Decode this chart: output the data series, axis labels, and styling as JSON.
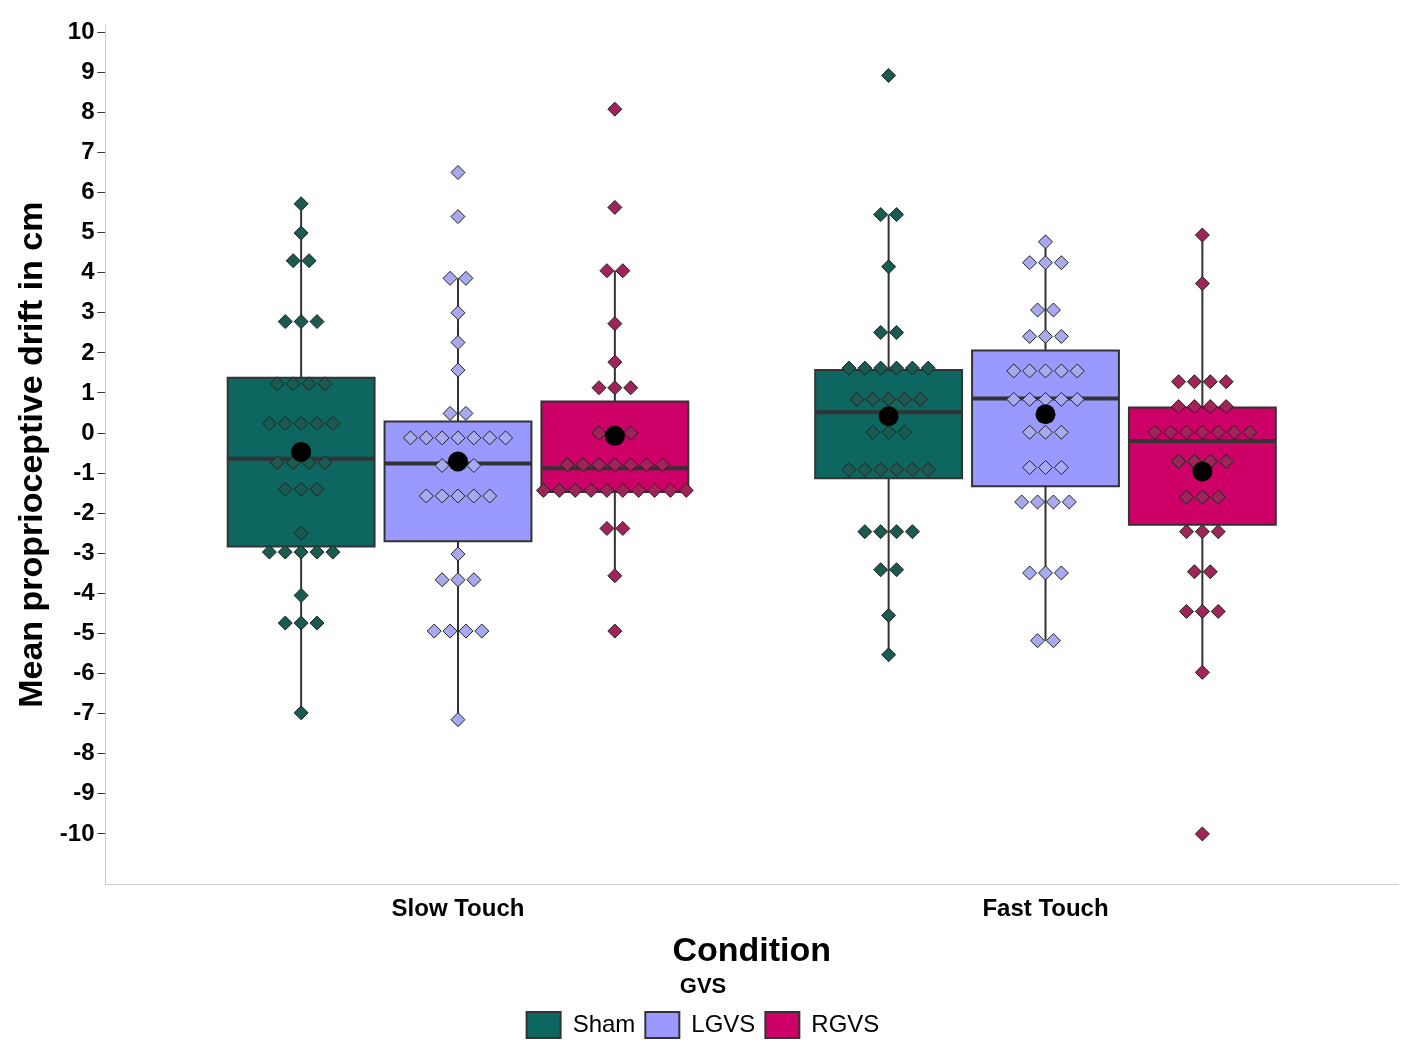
{
  "chart_data": {
    "type": "box",
    "xlabel": "Condition",
    "ylabel": "Mean proprioceptive drift in cm",
    "legend_title": "GVS",
    "legend": "bottom",
    "grid": false,
    "marker": "diamond",
    "categories": [
      "Slow Touch",
      "Fast Touch"
    ],
    "ylim": [
      -11.25,
      10.17
    ],
    "yticks": [
      -10,
      -9,
      -8,
      -7,
      -6,
      -5,
      -4,
      -3,
      -2,
      -1,
      0,
      1,
      2,
      3,
      4,
      5,
      6,
      7,
      8,
      9,
      10
    ],
    "series": [
      {
        "name": "Sham",
        "color": "#0e6660",
        "boxes": [
          {
            "low": -6.98,
            "q1": -2.83,
            "median": -0.64,
            "q3": 1.38,
            "high": 5.72,
            "mean": -0.47
          },
          {
            "low": -5.53,
            "q1": -1.13,
            "median": 0.52,
            "q3": 1.57,
            "high": 5.45,
            "mean": 0.42
          }
        ]
      },
      {
        "name": "LGVS",
        "color": "#9999ff",
        "boxes": [
          {
            "low": -7.15,
            "q1": -2.7,
            "median": -0.76,
            "q3": 0.29,
            "high": 3.86,
            "mean": -0.71
          },
          {
            "low": -5.18,
            "q1": -1.33,
            "median": 0.86,
            "q3": 2.06,
            "high": 4.77,
            "mean": 0.47
          }
        ]
      },
      {
        "name": "RGVS",
        "color": "#cc0066",
        "boxes": [
          {
            "low": -3.56,
            "q1": -1.47,
            "median": -0.88,
            "q3": 0.79,
            "high": 4.05,
            "mean": -0.07
          },
          {
            "low": -5.97,
            "q1": -2.29,
            "median": -0.2,
            "q3": 0.64,
            "high": 4.94,
            "mean": -0.96
          }
        ]
      },
      {
        "type": "scatter",
        "color": "#1b5a50",
        "x": [
          "Slow Touch",
          "Slow Touch",
          "Slow Touch",
          "Slow Touch",
          "Slow Touch",
          "Slow Touch",
          "Slow Touch",
          "Slow Touch",
          "Slow Touch",
          "Slow Touch",
          "Slow Touch",
          "Slow Touch",
          "Slow Touch",
          "Slow Touch",
          "Slow Touch",
          "Slow Touch",
          "Slow Touch",
          "Slow Touch",
          "Slow Touch",
          "Slow Touch",
          "Slow Touch",
          "Slow Touch",
          "Slow Touch",
          "Slow Touch",
          "Slow Touch",
          "Slow Touch",
          "Slow Touch",
          "Slow Touch",
          "Slow Touch",
          "Slow Touch",
          "Slow Touch",
          "Slow Touch",
          "Slow Touch",
          "Slow Touch",
          "Fast Touch",
          "Fast Touch",
          "Fast Touch",
          "Fast Touch",
          "Fast Touch",
          "Fast Touch",
          "Fast Touch",
          "Fast Touch",
          "Fast Touch",
          "Fast Touch",
          "Fast Touch",
          "Fast Touch",
          "Fast Touch",
          "Fast Touch",
          "Fast Touch",
          "Fast Touch",
          "Fast Touch",
          "Fast Touch",
          "Fast Touch",
          "Fast Touch",
          "Fast Touch",
          "Fast Touch",
          "Fast Touch",
          "Fast Touch",
          "Fast Touch",
          "Fast Touch",
          "Fast Touch",
          "Fast Touch",
          "Fast Touch",
          "Fast Touch",
          "Fast Touch",
          "Fast Touch",
          "Fast Touch",
          "Fast Touch"
        ],
        "values": [
          5.72,
          4.99,
          4.3,
          4.3,
          2.78,
          2.78,
          2.78,
          1.23,
          1.23,
          1.23,
          1.23,
          0.24,
          0.24,
          0.24,
          0.24,
          0.24,
          -0.74,
          -0.74,
          -0.74,
          -0.74,
          -1.4,
          -1.4,
          -1.4,
          -2.5,
          -2.97,
          -2.97,
          -2.97,
          -2.97,
          -2.97,
          -4.05,
          -4.74,
          -4.74,
          -4.74,
          -6.98,
          8.92,
          5.45,
          5.45,
          4.15,
          2.51,
          2.51,
          1.62,
          1.62,
          1.62,
          1.62,
          1.62,
          1.62,
          0.84,
          0.84,
          0.84,
          0.84,
          0.84,
          0.02,
          0.02,
          0.02,
          -0.91,
          -0.91,
          -0.91,
          -0.91,
          -0.91,
          -0.91,
          -2.46,
          -2.46,
          -2.46,
          -2.46,
          -3.41,
          -3.41,
          -4.55,
          -5.53
        ]
      },
      {
        "type": "scatter",
        "color": "#a9a9f0",
        "x": [
          "Slow Touch",
          "Slow Touch",
          "Slow Touch",
          "Slow Touch",
          "Slow Touch",
          "Slow Touch",
          "Slow Touch",
          "Slow Touch",
          "Slow Touch",
          "Slow Touch",
          "Slow Touch",
          "Slow Touch",
          "Slow Touch",
          "Slow Touch",
          "Slow Touch",
          "Slow Touch",
          "Slow Touch",
          "Slow Touch",
          "Slow Touch",
          "Slow Touch",
          "Slow Touch",
          "Slow Touch",
          "Slow Touch",
          "Slow Touch",
          "Slow Touch",
          "Slow Touch",
          "Slow Touch",
          "Slow Touch",
          "Slow Touch",
          "Slow Touch",
          "Slow Touch",
          "Slow Touch",
          "Slow Touch",
          "Fast Touch",
          "Fast Touch",
          "Fast Touch",
          "Fast Touch",
          "Fast Touch",
          "Fast Touch",
          "Fast Touch",
          "Fast Touch",
          "Fast Touch",
          "Fast Touch",
          "Fast Touch",
          "Fast Touch",
          "Fast Touch",
          "Fast Touch",
          "Fast Touch",
          "Fast Touch",
          "Fast Touch",
          "Fast Touch",
          "Fast Touch",
          "Fast Touch",
          "Fast Touch",
          "Fast Touch",
          "Fast Touch",
          "Fast Touch",
          "Fast Touch",
          "Fast Touch",
          "Fast Touch",
          "Fast Touch",
          "Fast Touch",
          "Fast Touch",
          "Fast Touch",
          "Fast Touch",
          "Fast Touch",
          "Fast Touch"
        ],
        "values": [
          6.5,
          5.4,
          3.86,
          3.86,
          3.0,
          2.26,
          1.57,
          0.49,
          0.49,
          -0.12,
          -0.12,
          -0.12,
          -0.12,
          -0.12,
          -0.12,
          -0.12,
          -0.81,
          null,
          -0.81,
          -1.57,
          -1.57,
          -1.57,
          -1.57,
          -1.57,
          -3.02,
          -3.66,
          -3.66,
          -3.66,
          -4.94,
          -4.94,
          -4.94,
          -4.94,
          -7.15,
          4.77,
          4.25,
          4.25,
          4.25,
          3.07,
          3.07,
          2.41,
          2.41,
          2.41,
          1.55,
          1.55,
          1.55,
          1.55,
          1.55,
          0.84,
          0.84,
          0.84,
          0.84,
          0.84,
          0.02,
          0.02,
          0.02,
          -0.86,
          -0.86,
          -0.86,
          -1.72,
          -1.72,
          -1.72,
          -1.72,
          -3.49,
          -3.49,
          -3.49,
          -5.18,
          -5.18
        ]
      },
      {
        "type": "scatter",
        "color": "#a0245a",
        "x": [
          "Slow Touch",
          "Slow Touch",
          "Slow Touch",
          "Slow Touch",
          "Slow Touch",
          "Slow Touch",
          "Slow Touch",
          "Slow Touch",
          "Slow Touch",
          "Slow Touch",
          "Slow Touch",
          "Slow Touch",
          "Slow Touch",
          "Slow Touch",
          "Slow Touch",
          "Slow Touch",
          "Slow Touch",
          "Slow Touch",
          "Slow Touch",
          "Slow Touch",
          "Slow Touch",
          "Slow Touch",
          "Slow Touch",
          "Slow Touch",
          "Slow Touch",
          "Slow Touch",
          "Slow Touch",
          "Slow Touch",
          "Slow Touch",
          "Slow Touch",
          "Slow Touch",
          "Slow Touch",
          "Slow Touch",
          "Fast Touch",
          "Fast Touch",
          "Fast Touch",
          "Fast Touch",
          "Fast Touch",
          "Fast Touch",
          "Fast Touch",
          "Fast Touch",
          "Fast Touch",
          "Fast Touch",
          "Fast Touch",
          "Fast Touch",
          "Fast Touch",
          "Fast Touch",
          "Fast Touch",
          "Fast Touch",
          "Fast Touch",
          "Fast Touch",
          "Fast Touch",
          "Fast Touch",
          "Fast Touch",
          "Fast Touch",
          "Fast Touch",
          "Fast Touch",
          "Fast Touch",
          "Fast Touch",
          "Fast Touch",
          "Fast Touch",
          "Fast Touch",
          "Fast Touch",
          "Fast Touch",
          "Fast Touch",
          "Fast Touch",
          "Fast Touch"
        ],
        "values": [
          8.08,
          5.63,
          4.05,
          4.05,
          2.73,
          1.77,
          1.13,
          1.13,
          1.13,
          0.0,
          null,
          0.0,
          -0.79,
          -0.79,
          -0.79,
          -0.79,
          -0.79,
          -0.79,
          -0.79,
          -1.43,
          -1.43,
          -1.43,
          -1.43,
          -1.43,
          -1.43,
          -1.43,
          -1.43,
          -1.43,
          -1.43,
          -2.38,
          -2.38,
          -3.56,
          -4.94,
          4.94,
          3.73,
          1.28,
          1.28,
          1.28,
          1.28,
          0.66,
          0.66,
          0.66,
          0.66,
          0.02,
          0.02,
          0.02,
          0.02,
          0.02,
          0.02,
          0.02,
          -0.71,
          -0.71,
          -0.71,
          -0.71,
          -1.6,
          -1.6,
          -1.6,
          -2.46,
          -2.46,
          -2.46,
          -3.46,
          -3.46,
          -4.45,
          -4.45,
          -4.45,
          -5.97,
          -10
        ]
      }
    ]
  }
}
